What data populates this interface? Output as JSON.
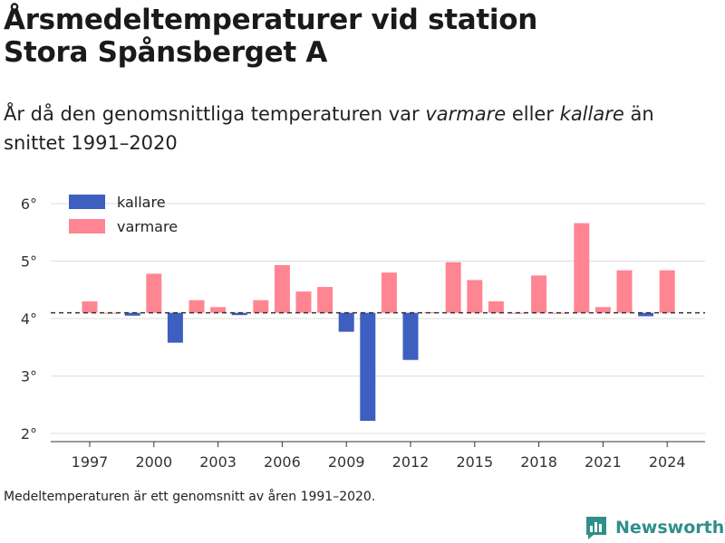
{
  "title_line1": "Årsmedeltemperaturer vid station",
  "title_line2": "Stora Spånsberget A",
  "subtitle": {
    "part1": "År då den genomsnittliga temperaturen var ",
    "warm_word": "varmare",
    "part2": " eller ",
    "cold_word": "kallare",
    "part3": " än snittet 1991–2020"
  },
  "footnote": "Medeltemperaturen är ett genomsnitt av åren 1991–2020.",
  "brand": "Newsworthy",
  "colors": {
    "kallare": "#3d5fc0",
    "varmare": "#ff8592",
    "grid": "#dddddd",
    "baseline": "#333333",
    "brand": "#2f8f8a"
  },
  "chart_data": {
    "type": "bar",
    "baseline": 4.1,
    "ylim": [
      2,
      6
    ],
    "yticks": [
      2,
      3,
      4,
      5,
      6
    ],
    "ytick_labels": [
      "2°",
      "3°",
      "4°",
      "5°",
      "6°"
    ],
    "xticks": [
      1997,
      2000,
      2003,
      2006,
      2009,
      2012,
      2015,
      2018,
      2021,
      2024
    ],
    "xlim": [
      1995,
      2027
    ],
    "legend": [
      {
        "key": "kallare",
        "label": "kallare"
      },
      {
        "key": "varmare",
        "label": "varmare"
      }
    ],
    "legend_position": "top-left",
    "grid": true,
    "years": [
      1997,
      1998,
      1999,
      2000,
      2001,
      2002,
      2003,
      2004,
      2005,
      2006,
      2007,
      2008,
      2009,
      2010,
      2011,
      2012,
      2013,
      2014,
      2015,
      2016,
      2017,
      2018,
      2019,
      2020,
      2021,
      2022,
      2023,
      2024
    ],
    "values": [
      4.3,
      4.1,
      4.05,
      4.78,
      3.58,
      4.32,
      4.2,
      4.06,
      4.32,
      4.93,
      4.47,
      4.55,
      3.77,
      2.22,
      4.8,
      3.28,
      4.11,
      4.98,
      4.67,
      4.3,
      4.1,
      4.75,
      4.1,
      5.66,
      4.2,
      4.84,
      4.04,
      4.84
    ]
  }
}
